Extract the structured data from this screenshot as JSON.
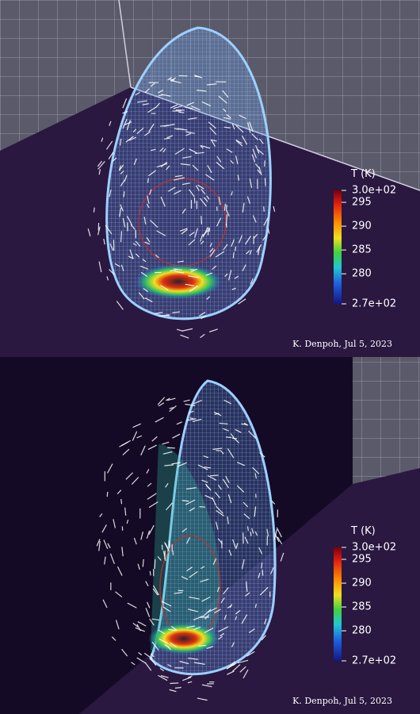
{
  "panels": [
    {
      "colorbar": {
        "title": "T (K)",
        "ticks": [
          {
            "value": 297.5,
            "label": "3.0e+02"
          },
          295,
          290,
          285,
          280,
          {
            "value": 273.7,
            "label": "2.7e+02"
          }
        ]
      },
      "credit": "K. Denpoh, Jul 5, 2023"
    },
    {
      "colorbar": {
        "title": "T (K)",
        "ticks": [
          {
            "value": 297.5,
            "label": "3.0e+02"
          },
          295,
          290,
          285,
          280,
          {
            "value": 273.7,
            "label": "2.7e+02"
          }
        ]
      },
      "credit": "K. Denpoh, Jul 5, 2023"
    }
  ]
}
